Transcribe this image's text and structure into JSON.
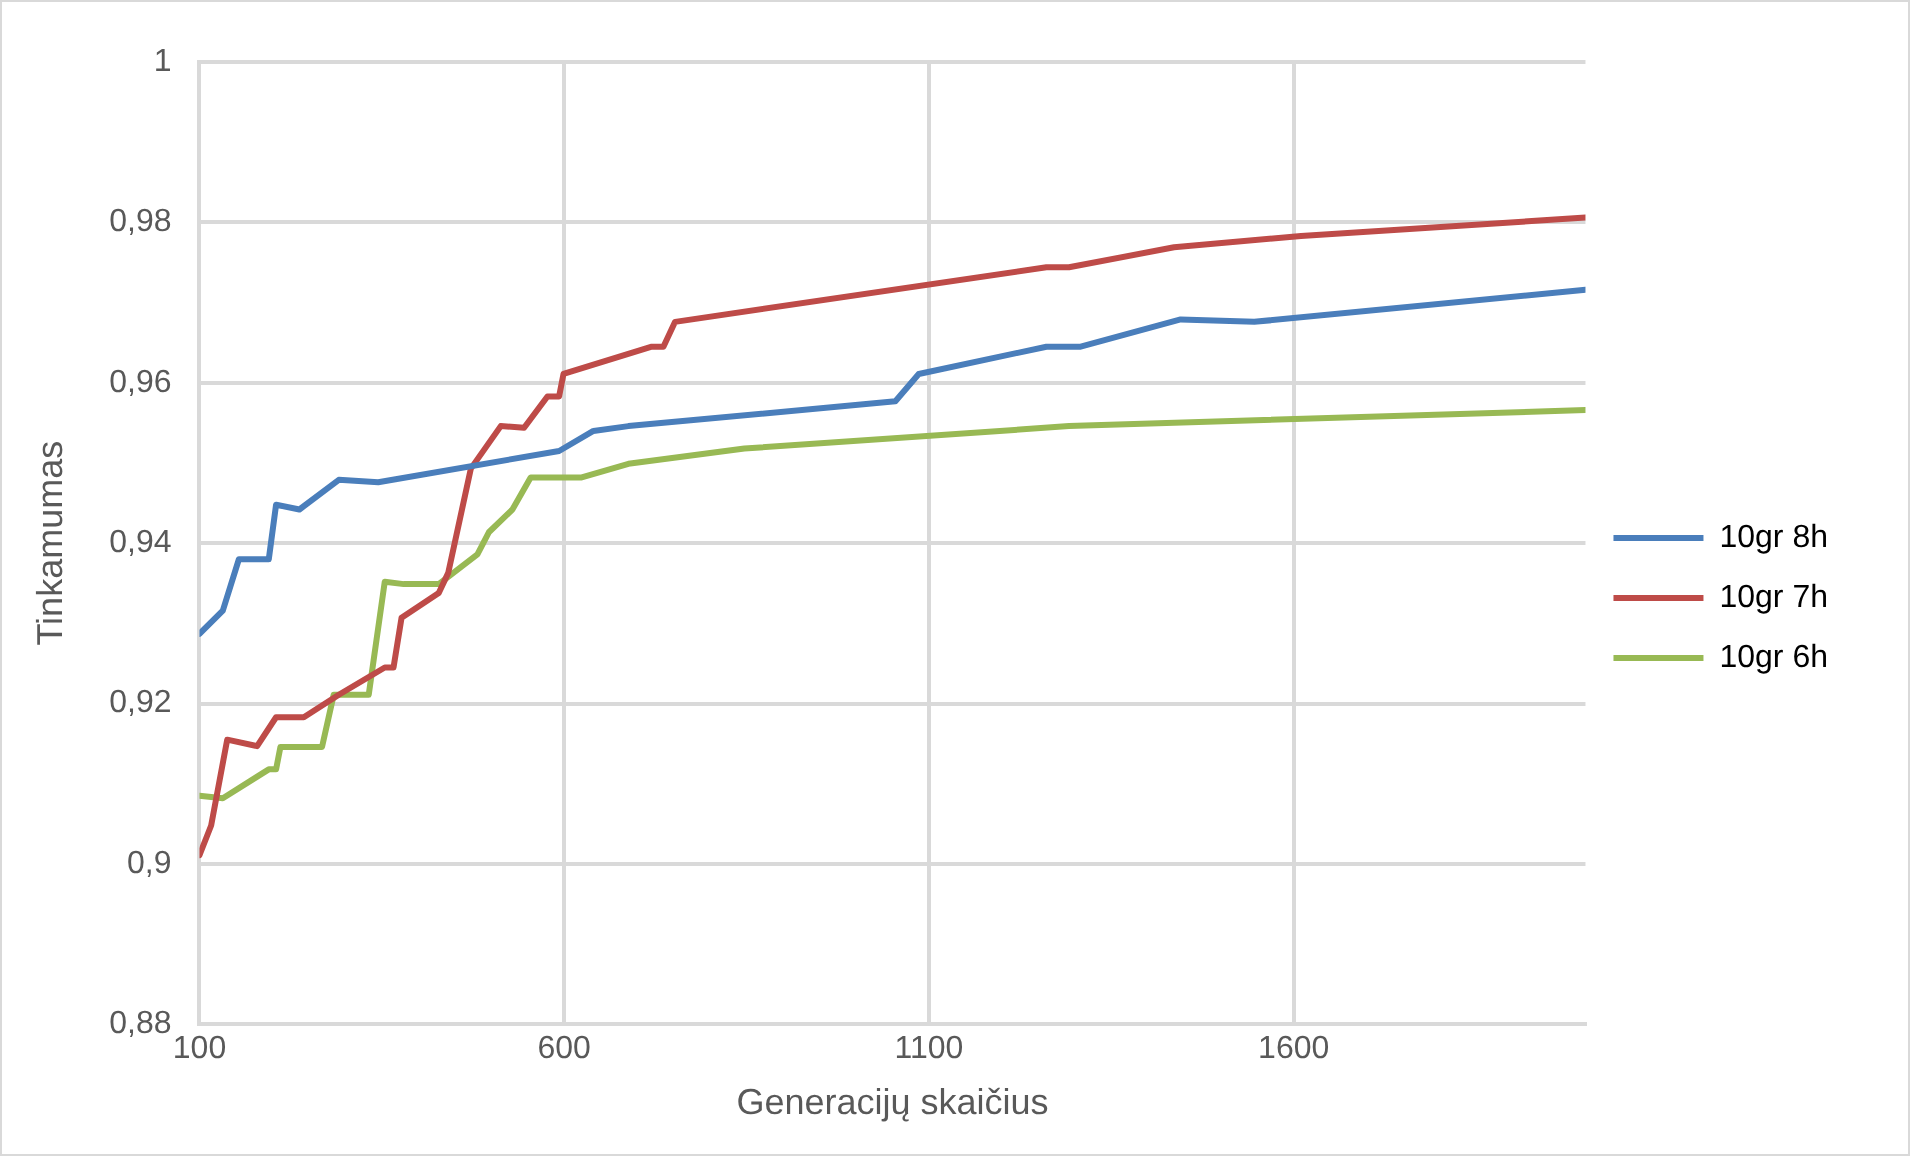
{
  "chart_data": {
    "type": "line",
    "xlabel": "Generacijų skaičius",
    "ylabel": "Tinkamumas",
    "xlim": [
      100,
      2000
    ],
    "xticks": [
      100,
      600,
      1100,
      1600
    ],
    "ylim": [
      0.88,
      1
    ],
    "yticks": [
      {
        "value": 0.88,
        "label": "0,88"
      },
      {
        "value": 0.9,
        "label": "0,9"
      },
      {
        "value": 0.92,
        "label": "0,92"
      },
      {
        "value": 0.94,
        "label": "0,94"
      },
      {
        "value": 0.96,
        "label": "0,96"
      },
      {
        "value": 0.98,
        "label": "0,98"
      },
      {
        "value": 1,
        "label": "1"
      }
    ],
    "grid": true,
    "legend": "right",
    "marker": "none",
    "series": [
      {
        "name": "10gr 8h",
        "color": "#4a7ebb",
        "x": [
          100,
          132,
          154,
          195,
          205,
          237,
          291,
          345,
          593,
          640,
          688,
          1054,
          1086,
          1261,
          1308,
          1445,
          1546,
          2000
        ],
        "values": [
          0.9287,
          0.9316,
          0.938,
          0.938,
          0.9448,
          0.9442,
          0.9479,
          0.9476,
          0.9515,
          0.954,
          0.9546,
          0.9577,
          0.9611,
          0.9645,
          0.9645,
          0.9679,
          0.9676,
          0.9716
        ]
      },
      {
        "name": "10gr 7h",
        "color": "#be4b48",
        "x": [
          100,
          116,
          138,
          179,
          205,
          243,
          291,
          354,
          366,
          377,
          428,
          441,
          472,
          513,
          545,
          577,
          593,
          599,
          720,
          736,
          752,
          1261,
          1292,
          1436,
          1610,
          2000
        ],
        "values": [
          0.9011,
          0.9048,
          0.9155,
          0.9147,
          0.9183,
          0.9183,
          0.9211,
          0.9245,
          0.9245,
          0.9307,
          0.9338,
          0.9363,
          0.9493,
          0.9546,
          0.9544,
          0.9583,
          0.9583,
          0.9611,
          0.9645,
          0.9645,
          0.9676,
          0.9744,
          0.9744,
          0.9769,
          0.9783,
          0.9806
        ]
      },
      {
        "name": "10gr 6h",
        "color": "#98b954",
        "x": [
          100,
          132,
          195,
          205,
          211,
          268,
          284,
          332,
          354,
          380,
          428,
          481,
          497,
          529,
          554,
          593,
          624,
          688,
          847,
          1292,
          2000
        ],
        "values": [
          0.9085,
          0.9082,
          0.9118,
          0.9118,
          0.9146,
          0.9146,
          0.9211,
          0.9211,
          0.9352,
          0.9349,
          0.9349,
          0.9386,
          0.9414,
          0.9442,
          0.9482,
          0.9482,
          0.9482,
          0.9499,
          0.9518,
          0.9546,
          0.9566
        ]
      }
    ]
  }
}
